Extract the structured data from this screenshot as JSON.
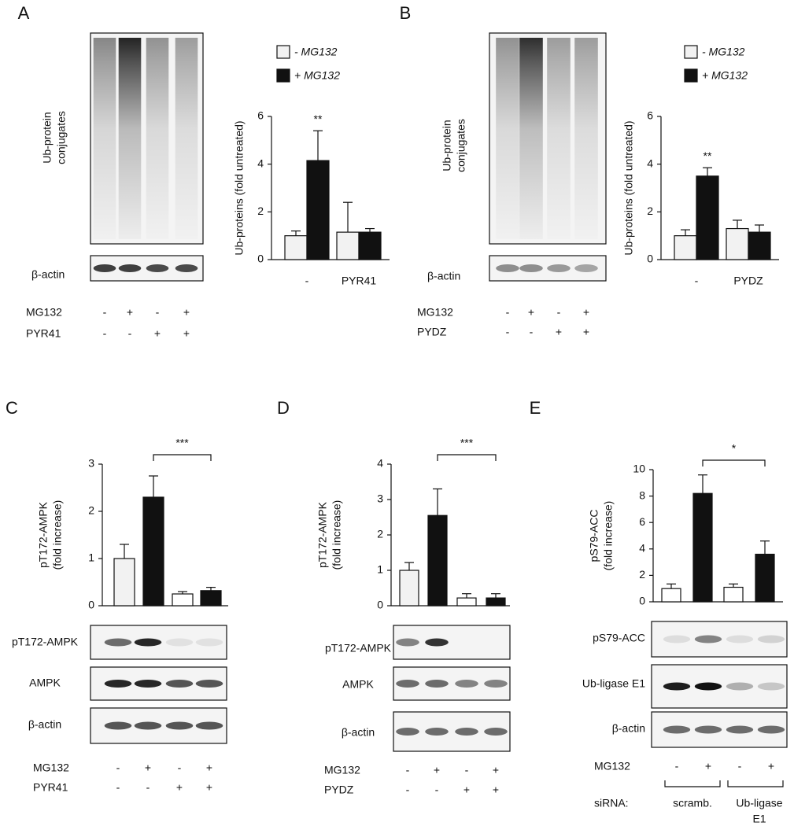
{
  "chart_data": [
    {
      "type": "bar",
      "ylabel": "Ub-proteins (fold untreated)",
      "categories": [
        "-",
        "PYR41"
      ],
      "series": [
        {
          "name": "- MG132",
          "color": "#f2f2f2",
          "values": [
            1.0,
            1.15
          ],
          "errors": [
            0.2,
            1.25
          ]
        },
        {
          "name": "+ MG132",
          "color": "#111111",
          "values": [
            4.15,
            1.15
          ],
          "errors": [
            1.25,
            0.15
          ]
        }
      ],
      "ylim": [
        0,
        6
      ],
      "yticks": [
        0,
        2,
        4,
        6
      ],
      "annotation": "**"
    },
    {
      "type": "bar",
      "ylabel": "Ub-proteins (fold untreated)",
      "categories": [
        "-",
        "PYDZ"
      ],
      "series": [
        {
          "name": "- MG132",
          "color": "#f2f2f2",
          "values": [
            1.0,
            1.3
          ],
          "errors": [
            0.25,
            0.35
          ]
        },
        {
          "name": "+ MG132",
          "color": "#111111",
          "values": [
            3.5,
            1.15
          ],
          "errors": [
            0.35,
            0.3
          ]
        }
      ],
      "ylim": [
        0,
        6
      ],
      "yticks": [
        0,
        2,
        4,
        6
      ],
      "annotation": "**"
    },
    {
      "type": "bar",
      "ylabel": [
        "pT172-AMPK",
        "(fold increase)"
      ],
      "values": [
        1.0,
        2.3,
        0.25,
        0.32
      ],
      "errors": [
        0.3,
        0.45,
        0.05,
        0.07
      ],
      "colors": [
        "#f2f2f2",
        "#111111",
        "#ffffff",
        "#111111"
      ],
      "ylim": [
        0,
        3
      ],
      "yticks": [
        0,
        1,
        2,
        3
      ],
      "annotation": "***"
    },
    {
      "type": "bar",
      "ylabel": [
        "pT172-AMPK",
        "(fold increase)"
      ],
      "values": [
        1.0,
        2.55,
        0.22,
        0.22
      ],
      "errors": [
        0.22,
        0.75,
        0.12,
        0.12
      ],
      "colors": [
        "#f2f2f2",
        "#111111",
        "#ffffff",
        "#111111"
      ],
      "ylim": [
        0,
        4
      ],
      "yticks": [
        0,
        1,
        2,
        3,
        4
      ],
      "annotation": "***"
    },
    {
      "type": "bar",
      "ylabel": [
        "pS79-ACC",
        "(fold increase)"
      ],
      "values": [
        1.0,
        8.2,
        1.1,
        3.6
      ],
      "errors": [
        0.35,
        1.4,
        0.25,
        1.0
      ],
      "colors": [
        "#ffffff",
        "#111111",
        "#ffffff",
        "#111111"
      ],
      "ylim": [
        0,
        10
      ],
      "yticks": [
        0,
        2,
        4,
        6,
        8,
        10
      ],
      "annotation": "*"
    }
  ],
  "panels": [
    {
      "letter": "A",
      "blot_labels": [
        [
          "Ub-protein",
          "conjugates"
        ],
        [
          "β-actin"
        ]
      ],
      "conditions": [
        {
          "label": "MG132",
          "signs": [
            "-",
            "+",
            "-",
            "+"
          ]
        },
        {
          "label": "PYR41",
          "signs": [
            "-",
            "-",
            "+",
            "+"
          ]
        }
      ]
    },
    {
      "letter": "B",
      "blot_labels": [
        [
          "Ub-protein",
          "conjugates"
        ],
        [
          "β-actin"
        ]
      ],
      "conditions": [
        {
          "label": "MG132",
          "signs": [
            "-",
            "+",
            "-",
            "+"
          ]
        },
        {
          "label": "PYDZ",
          "signs": [
            "-",
            "-",
            "+",
            "+"
          ]
        }
      ]
    },
    {
      "letter": "C",
      "blot_labels": [
        [
          "pT172-AMPK"
        ],
        [
          "AMPK"
        ],
        [
          "β-actin"
        ]
      ],
      "conditions": [
        {
          "label": "MG132",
          "signs": [
            "-",
            "+",
            "-",
            "+"
          ]
        },
        {
          "label": "PYR41",
          "signs": [
            "-",
            "-",
            "+",
            "+"
          ]
        }
      ]
    },
    {
      "letter": "D",
      "blot_labels": [
        [
          "pT172-AMPK"
        ],
        [
          "AMPK"
        ],
        [
          "β-actin"
        ]
      ],
      "conditions": [
        {
          "label": "MG132",
          "signs": [
            "-",
            "+",
            "-",
            "+"
          ]
        },
        {
          "label": "PYDZ",
          "signs": [
            "-",
            "-",
            "+",
            "+"
          ]
        }
      ]
    },
    {
      "letter": "E",
      "blot_labels": [
        [
          "pS79-ACC"
        ],
        [
          "Ub-ligase E1"
        ],
        [
          "β-actin"
        ]
      ],
      "conditions": [
        {
          "label": "MG132",
          "signs": [
            "-",
            "+",
            "-",
            "+"
          ]
        }
      ],
      "sirna": {
        "label": "siRNA:",
        "groups": [
          [
            "scramb."
          ],
          [
            "Ub-ligase",
            "E1"
          ]
        ]
      }
    }
  ]
}
